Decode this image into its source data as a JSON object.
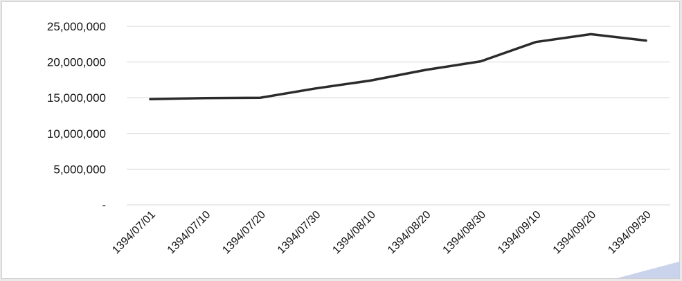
{
  "chart_data": {
    "type": "line",
    "title": "",
    "xlabel": "",
    "ylabel": "",
    "categories": [
      "1394/07/01",
      "1394/07/10",
      "1394/07/20",
      "1394/07/30",
      "1394/08/10",
      "1394/08/20",
      "1394/08/30",
      "1394/09/10",
      "1394/09/20",
      "1394/09/30"
    ],
    "series": [
      {
        "values": [
          14800000,
          14950000,
          15000000,
          16300000,
          17400000,
          18900000,
          20100000,
          22800000,
          23900000,
          23000000
        ],
        "color": "#2b2b2b"
      }
    ],
    "ylim": [
      0,
      25000000
    ],
    "yticks": [
      0,
      5000000,
      10000000,
      15000000,
      20000000,
      25000000
    ],
    "ytick_labels": [
      "-",
      "5,000,000",
      "10,000,000",
      "15,000,000",
      "20,000,000",
      "25,000,000"
    ],
    "grid": true,
    "legend": "none"
  }
}
